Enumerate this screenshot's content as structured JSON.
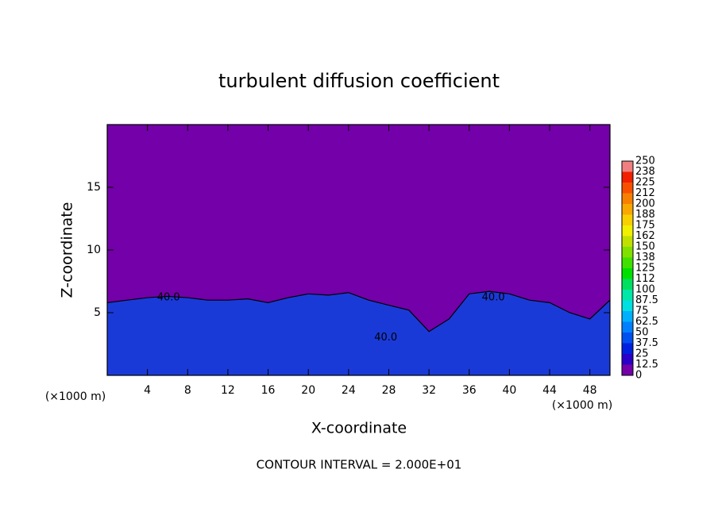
{
  "chart_data": {
    "type": "contour",
    "title": "turbulent diffusion coefficient",
    "x_label": "X-coordinate",
    "y_label": "Z-coordinate",
    "x_unit": "(×1000 m)",
    "footer": "CONTOUR INTERVAL = 2.000E+01",
    "xlim": [
      0,
      50
    ],
    "ylim": [
      0,
      20
    ],
    "xticks": [
      4,
      8,
      12,
      16,
      20,
      24,
      28,
      32,
      36,
      40,
      44,
      48
    ],
    "yticks": [
      5,
      10,
      15
    ],
    "background_color": "#7300a8",
    "field_color": "#1a3ad8",
    "x": [
      0,
      2,
      4,
      6,
      8,
      10,
      12,
      14,
      16,
      18,
      20,
      22,
      24,
      26,
      28,
      30,
      32,
      34,
      36,
      38,
      40,
      42,
      44,
      46,
      48,
      50
    ],
    "values": [
      5.8,
      6,
      6.2,
      6.3,
      6.2,
      6,
      6,
      6.1,
      5.8,
      6.2,
      6.5,
      6.4,
      6.6,
      6,
      5.6,
      5.2,
      3.5,
      4.5,
      6.5,
      6.7,
      6.5,
      6,
      5.8,
      5,
      4.5,
      6
    ],
    "contour_labels": [
      {
        "text": "40.0",
        "x": 6.1,
        "z": 6.2
      },
      {
        "text": "40.0",
        "x": 38.4,
        "z": 6.2
      },
      {
        "text": "40.0",
        "x": 27.7,
        "z": 3
      }
    ],
    "colorbar": {
      "levels": [
        0,
        12.5,
        25,
        37.5,
        50,
        62.5,
        75,
        87.5,
        100,
        112,
        125,
        138,
        150,
        162,
        175,
        188,
        200,
        212,
        225,
        238,
        250
      ],
      "colors": [
        "#7300a8",
        "#2a00c8",
        "#0020e0",
        "#0050f0",
        "#0080ff",
        "#00b0ff",
        "#00e0e0",
        "#00e8a8",
        "#00e060",
        "#00e000",
        "#40e000",
        "#80e000",
        "#c0e000",
        "#f0f000",
        "#f8d000",
        "#f8a800",
        "#f88000",
        "#f85000",
        "#f02000",
        "#f08080"
      ]
    }
  }
}
